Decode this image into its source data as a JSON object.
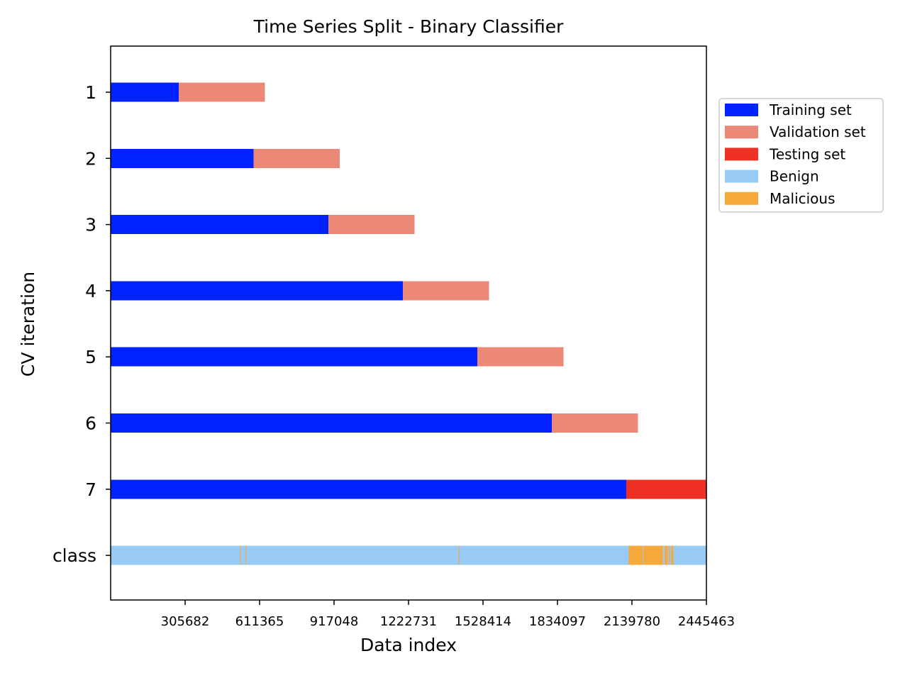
{
  "chart_data": {
    "type": "bar",
    "subtype": "horizontal-segmented-timeline",
    "title": "Time Series Split - Binary Classifier",
    "xlabel": "Data index",
    "ylabel": "CV iteration",
    "xlim": [
      0,
      2445463
    ],
    "x_ticks": [
      305682,
      611365,
      917048,
      1222731,
      1528414,
      1834097,
      2139780,
      2445463
    ],
    "x_tick_labels": [
      "305682",
      "611365",
      "917048",
      "1222731",
      "1528414",
      "1834097",
      "2139780",
      "2445463"
    ],
    "y_categories": [
      "1",
      "2",
      "3",
      "4",
      "5",
      "6",
      "7",
      "class"
    ],
    "grid": false,
    "legend_position": "outside-right-top",
    "legend": [
      {
        "label": "Training set",
        "color": "#0022ff"
      },
      {
        "label": "Validation set",
        "color": "#ec8878"
      },
      {
        "label": "Testing set",
        "color": "#ee3124"
      },
      {
        "label": "Benign",
        "color": "#97cbf4"
      },
      {
        "label": "Malicious",
        "color": "#f4a93a"
      }
    ],
    "series": [
      {
        "iteration": "1",
        "segments": [
          {
            "set": "Training set",
            "start": 0,
            "end": 280000
          },
          {
            "set": "Validation set",
            "start": 280000,
            "end": 633000
          }
        ]
      },
      {
        "iteration": "2",
        "segments": [
          {
            "set": "Training set",
            "start": 0,
            "end": 587000
          },
          {
            "set": "Validation set",
            "start": 587000,
            "end": 940000
          }
        ]
      },
      {
        "iteration": "3",
        "segments": [
          {
            "set": "Training set",
            "start": 0,
            "end": 894000
          },
          {
            "set": "Validation set",
            "start": 894000,
            "end": 1247000
          }
        ]
      },
      {
        "iteration": "4",
        "segments": [
          {
            "set": "Training set",
            "start": 0,
            "end": 1200000
          },
          {
            "set": "Validation set",
            "start": 1200000,
            "end": 1553000
          }
        ]
      },
      {
        "iteration": "5",
        "segments": [
          {
            "set": "Training set",
            "start": 0,
            "end": 1505000
          },
          {
            "set": "Validation set",
            "start": 1505000,
            "end": 1859000
          }
        ]
      },
      {
        "iteration": "6",
        "segments": [
          {
            "set": "Training set",
            "start": 0,
            "end": 1811000
          },
          {
            "set": "Validation set",
            "start": 1811000,
            "end": 2165000
          }
        ]
      },
      {
        "iteration": "7",
        "segments": [
          {
            "set": "Training set",
            "start": 0,
            "end": 2116000
          },
          {
            "set": "Testing set",
            "start": 2116000,
            "end": 2445463
          }
        ]
      },
      {
        "iteration": "class",
        "segments": [
          {
            "set": "Benign",
            "start": 0,
            "end": 2445463
          },
          {
            "set": "Malicious",
            "start": 531000,
            "end": 534000
          },
          {
            "set": "Malicious",
            "start": 553000,
            "end": 556000
          },
          {
            "set": "Malicious",
            "start": 1430000,
            "end": 1432000
          },
          {
            "set": "Malicious",
            "start": 2126000,
            "end": 2185000
          },
          {
            "set": "Malicious",
            "start": 2188000,
            "end": 2267000
          },
          {
            "set": "Malicious",
            "start": 2274000,
            "end": 2287000
          },
          {
            "set": "Malicious",
            "start": 2291000,
            "end": 2296000
          },
          {
            "set": "Malicious",
            "start": 2302000,
            "end": 2310000
          }
        ]
      }
    ]
  }
}
